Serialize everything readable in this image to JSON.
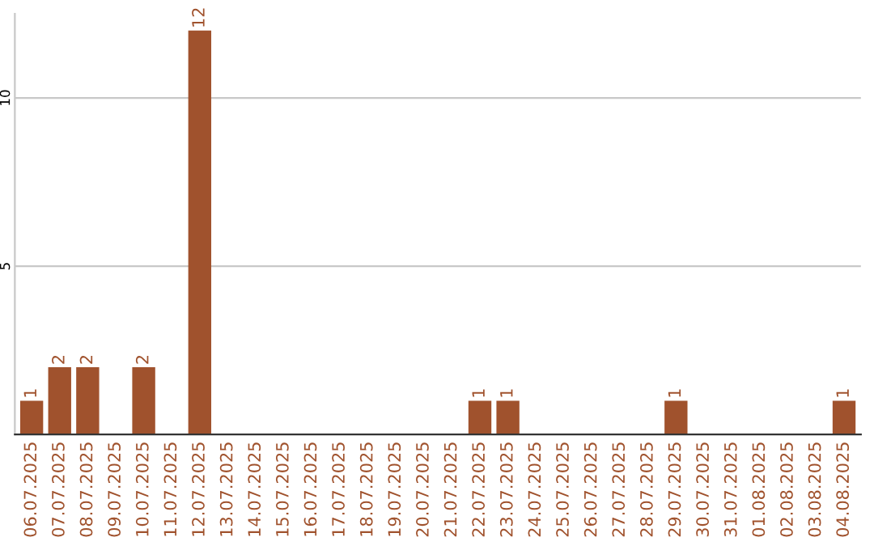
{
  "chart_data": {
    "type": "bar",
    "categories": [
      "06.07.2025",
      "07.07.2025",
      "08.07.2025",
      "09.07.2025",
      "10.07.2025",
      "11.07.2025",
      "12.07.2025",
      "13.07.2025",
      "14.07.2025",
      "15.07.2025",
      "16.07.2025",
      "17.07.2025",
      "18.07.2025",
      "19.07.2025",
      "20.07.2025",
      "21.07.2025",
      "22.07.2025",
      "23.07.2025",
      "24.07.2025",
      "25.07.2025",
      "26.07.2025",
      "27.07.2025",
      "28.07.2025",
      "29.07.2025",
      "30.07.2025",
      "31.07.2025",
      "01.08.2025",
      "02.08.2025",
      "03.08.2025",
      "04.08.2025"
    ],
    "values": [
      1,
      2,
      2,
      0,
      2,
      0,
      12,
      0,
      0,
      0,
      0,
      0,
      0,
      0,
      0,
      0,
      1,
      1,
      0,
      0,
      0,
      0,
      0,
      1,
      0,
      0,
      0,
      0,
      0,
      1
    ],
    "value_labels": [
      "1",
      "2",
      "2",
      null,
      "2",
      null,
      "12",
      null,
      null,
      null,
      null,
      null,
      null,
      null,
      null,
      null,
      "1",
      "1",
      null,
      null,
      null,
      null,
      null,
      "1",
      null,
      null,
      null,
      null,
      null,
      "1"
    ],
    "color": "#a0522d",
    "ylim": [
      0,
      12.5
    ],
    "yticks": [
      5,
      10
    ],
    "grid": "y",
    "legend": false
  }
}
